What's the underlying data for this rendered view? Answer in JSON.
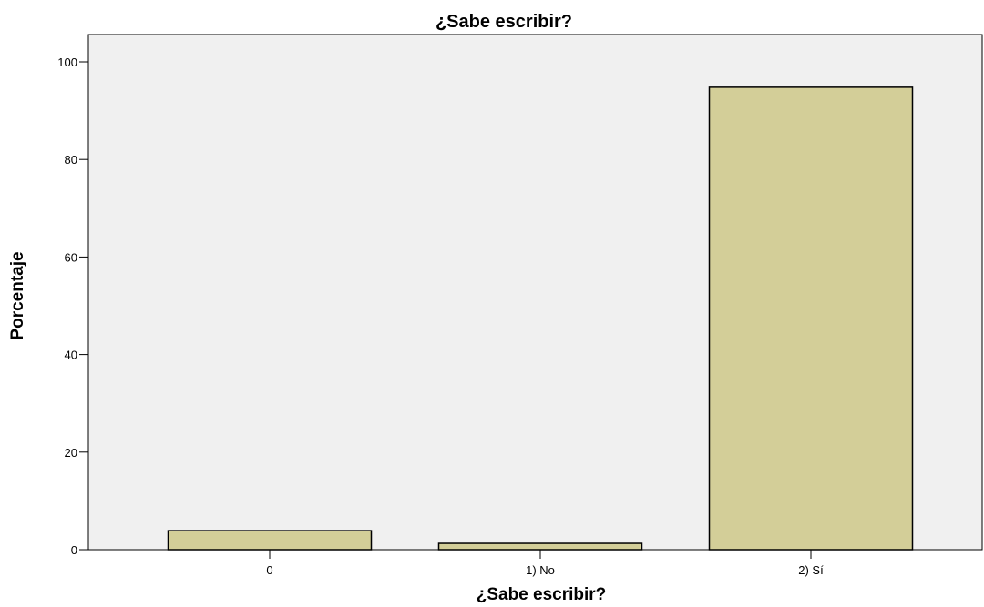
{
  "chart_data": {
    "type": "bar",
    "title": "¿Sabe escribir?",
    "xlabel": "¿Sabe escribir?",
    "ylabel": "Porcentaje",
    "categories": [
      "0",
      "1) No",
      "2) Sí"
    ],
    "values": [
      3.9,
      1.3,
      94.8
    ],
    "ylim": [
      0,
      100
    ],
    "yticks": [
      0,
      20,
      40,
      60,
      80,
      100
    ],
    "grid": false,
    "legend": "none",
    "colors": {
      "plot_background": "#f0f0f0",
      "bar_fill": "#d3ce98",
      "bar_stroke": "#000000"
    }
  }
}
